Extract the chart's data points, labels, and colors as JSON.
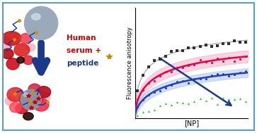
{
  "fig_width": 3.63,
  "fig_height": 1.89,
  "dpi": 100,
  "bg_color": "#ffffff",
  "border_color": "#5b9bd5",
  "left_panel": {
    "sphere_color": "#9aaabb",
    "sphere_highlight": "#ccdde8",
    "arrow_color": "#1a3a8a",
    "text_human": "Human",
    "text_serum": "serum +",
    "text_peptide": "peptide",
    "text_color_red": "#cc0000",
    "text_color_blue": "#1a3a8a"
  },
  "right_panel": {
    "ylabel": "Fluorescence anisotropy",
    "xlabel": "[NP]",
    "curve_dark": {
      "color": "#303030",
      "fill_color": "#909090"
    },
    "curve_red": {
      "color": "#e8004a",
      "fill_color": "#f5b0c8"
    },
    "curve_blue": {
      "color": "#2040c0",
      "fill_color": "#a0b8e8"
    },
    "scatter_green": {
      "color": "#22cc22"
    },
    "arrow_color": "#1a3a8a",
    "x_max": 10.0,
    "y_max": 1.0
  }
}
